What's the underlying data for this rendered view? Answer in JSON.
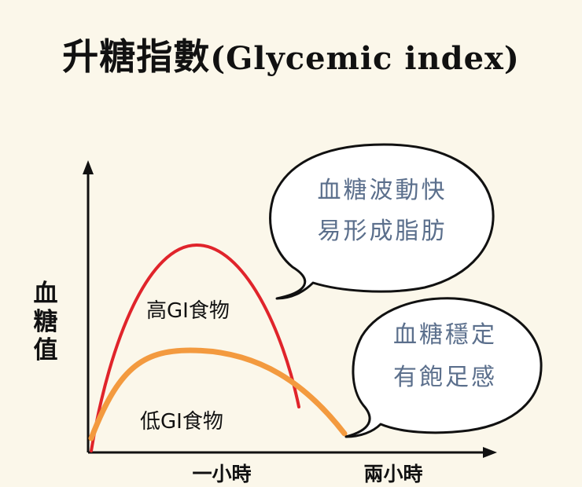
{
  "title": {
    "main": "升糖指數",
    "paren": "(Glycemic index)"
  },
  "axes": {
    "y_label": [
      "血",
      "糖",
      "值"
    ],
    "x_ticks": [
      "一小時",
      "兩小時"
    ]
  },
  "curves": {
    "high_gi": {
      "label": "高GI食物",
      "color": "#e0242b"
    },
    "low_gi": {
      "label": "低GI食物",
      "color": "#f39a3f"
    }
  },
  "bubbles": {
    "high_gi": [
      "血糖波動快",
      "易形成脂肪"
    ],
    "low_gi": [
      "血糖穩定",
      "有飽足感"
    ]
  },
  "colors": {
    "background": "#fbf7ea",
    "bubble_text": "#5b6f8c",
    "ink": "#111111"
  }
}
